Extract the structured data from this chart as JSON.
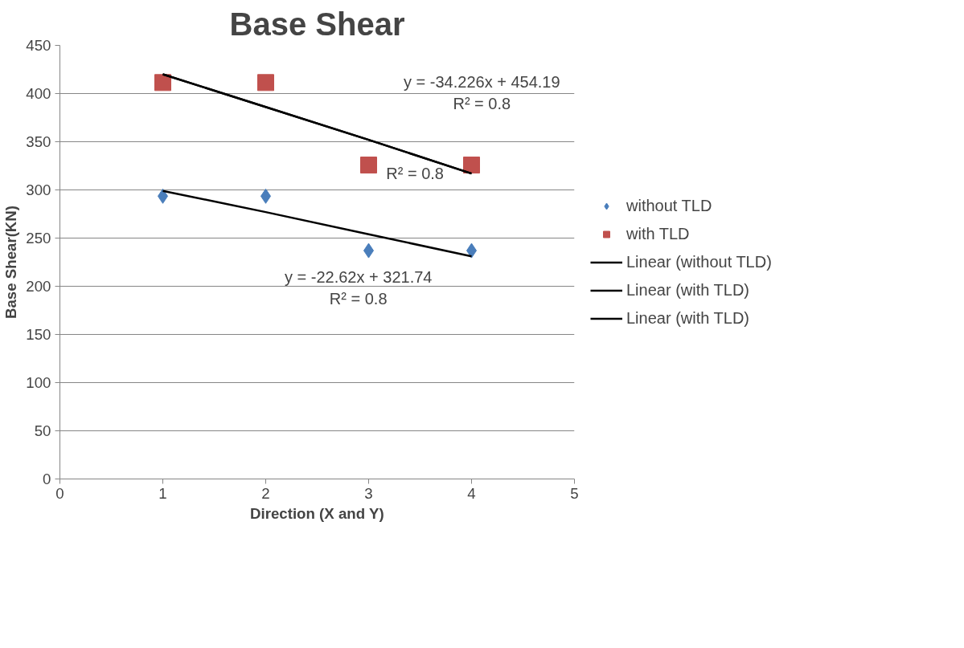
{
  "chart_data": {
    "type": "scatter",
    "title": "Base Shear",
    "xlabel": "Direction (X and Y)",
    "ylabel": "Base Shear(KN)",
    "x": [
      1,
      2,
      3,
      4
    ],
    "series": [
      {
        "name": "without TLD",
        "color": "#4a7ebb",
        "marker": "diamond",
        "values": [
          293.5,
          293.5,
          237.0,
          237.0
        ]
      },
      {
        "name": "with TLD",
        "color": "#c0504d",
        "marker": "square",
        "values": [
          411.4,
          411.4,
          325.8,
          325.8
        ]
      },
      {
        "name": "Linear (without TLD)",
        "type": "line",
        "color": "#000000",
        "marker": "none",
        "line_style": "solid",
        "values": [
          299,
          277,
          254,
          231
        ]
      },
      {
        "name": "Linear (with TLD)",
        "type": "line",
        "color": "#000000",
        "marker": "none",
        "line_style": "solid",
        "values": [
          420,
          386,
          352,
          317
        ]
      },
      {
        "name": "Linear (with TLD)",
        "type": "line",
        "color": "#000000",
        "marker": "none",
        "line_style": "solid",
        "values": [
          420,
          386,
          352,
          317
        ]
      }
    ],
    "annotations": [
      "y = -34.226x + 454.19",
      "R² = 0.8",
      "R² = 0.8",
      "y = -22.62x + 321.74",
      "R² = 0.8"
    ],
    "xlim": [
      0,
      5
    ],
    "xticks": [
      0,
      1,
      2,
      3,
      4,
      5
    ],
    "ylim": [
      0,
      450
    ],
    "yticks": [
      0,
      50,
      100,
      150,
      200,
      250,
      300,
      350,
      400,
      450
    ],
    "grid": "y",
    "legend": "right"
  }
}
